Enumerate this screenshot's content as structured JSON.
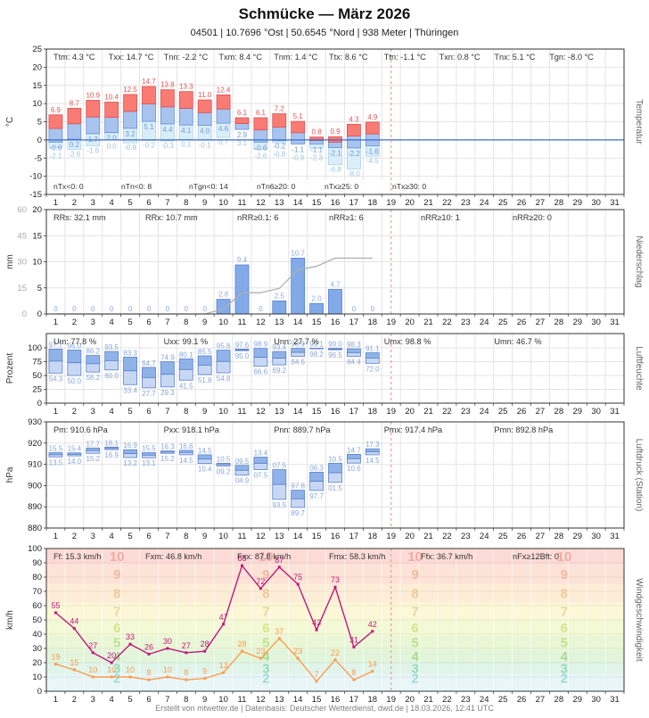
{
  "title": "Schmücke — März 2026",
  "subtitle": "04501 | 10.7696 °Ost | 50.6545 °Nord | 938 Meter | Thüringen",
  "footer": "Erstellt von mtwetter.de | Datenbasis: Deutscher Wetterdienst, dwd.de | 18.03.2026, 12:41 UTC",
  "days_in_month": 31,
  "current_day_marker": 18.5,
  "colors": {
    "tmax_bar": "#f87b74",
    "tmax_border": "#e05050",
    "tmin_bar": "#a8c4ee",
    "tmin_border": "#6090d8",
    "tground_bar": "#daeefa",
    "tground_border": "#a9d4ea",
    "tmax_label": "#e25555",
    "tmin_label": "#6f97d8",
    "tground_label": "#9cc2e0",
    "zero_line": "#3a6cc8",
    "precip_bar": "#82aae8",
    "precip_border": "#5580cc",
    "precip_label": "#8fa9e6",
    "cumulative_line": "#b0b0b0",
    "range_bar_top": "#8fb2e8",
    "range_bar_bottom": "#c8d8f4",
    "range_bar_border": "#5a82cc",
    "range_label": "#87a6dc",
    "gust_line": "#c2187c",
    "mean_line": "#fe9b4e",
    "now_line": "#e09090",
    "grid": "#e4e4e4",
    "border": "#333333",
    "stats_text": "#333333",
    "axis_text": "#222222",
    "axis2_text": "#aaaaaa",
    "panel_label": "#666666"
  },
  "chart_data": [
    {
      "id": "temperature",
      "type": "bar",
      "panel_label": "Temperatur",
      "ylabel": "°C",
      "ylim": [
        -15,
        25
      ],
      "yticks": [
        25,
        20,
        15,
        10,
        5,
        0,
        -5,
        -10,
        -15
      ],
      "stats": [
        "Ttm: 4.3 °C",
        "Txx: 14.7 °C",
        "Tnn: -2.2 °C",
        "Txm: 8.4 °C",
        "Tnm: 1.4 °C",
        "Ttx: 8.6 °C",
        "Ttn: -1.1 °C",
        "Txn: 0.8 °C",
        "Tnx: 5.1 °C",
        "Tgn: -8.0 °C"
      ],
      "stats_bottom": [
        "nTx<0: 0",
        "nTn<0: 8",
        "nTgn<0: 14",
        "nTn6≥20: 0",
        "nTx≥25: 0",
        "nTx≥30: 0"
      ],
      "tmax": [
        6.9,
        8.7,
        10.9,
        10.4,
        12.5,
        14.7,
        13.8,
        13.3,
        11.0,
        12.4,
        6.1,
        6.1,
        7.2,
        5.1,
        0.8,
        0.9,
        4.3,
        4.9
      ],
      "tmin": [
        -0.6,
        0.2,
        1.7,
        2.0,
        3.2,
        5.1,
        4.4,
        4.1,
        4.0,
        4.6,
        2.9,
        -0.6,
        -0.2,
        -1.1,
        -1.1,
        -2.1,
        -2.2,
        -1.6
      ],
      "tground": [
        -2.1,
        -2.6,
        -1.6,
        0.0,
        -0.8,
        -0.2,
        -0.3,
        0.1,
        -0.1,
        0.7,
        3.1,
        -2.6,
        -0.8,
        -0.9,
        -2.3,
        -6.8,
        -8.0,
        -4.5
      ]
    },
    {
      "id": "precipitation",
      "type": "bar",
      "panel_label": "Niederschlag",
      "ylabel": "mm",
      "ylim": [
        0,
        20
      ],
      "yticks": [
        20,
        15,
        10,
        5,
        0
      ],
      "y2lim": [
        0,
        60
      ],
      "y2ticks": [
        60,
        45,
        30,
        15,
        0
      ],
      "stats": [
        "RRs: 32.1 mm",
        "RRx: 10.7 mm",
        "nRR≥0.1: 6",
        "nRR≥1: 6",
        "nRR≥10: 1",
        "nRR≥20: 0"
      ],
      "values": [
        0,
        0,
        0,
        0,
        0,
        0,
        0,
        0,
        0,
        2.8,
        9.4,
        0,
        2.5,
        10.7,
        2.0,
        4.7,
        0,
        0
      ],
      "cumulative_line": true
    },
    {
      "id": "humidity",
      "type": "bar",
      "panel_label": "Luftfeuchte",
      "ylabel": "Prozent",
      "ylim": [
        0,
        100
      ],
      "yticks": [
        100,
        75,
        50,
        25,
        0
      ],
      "stats": [
        "Um: 77.8 %",
        "Uxx: 99.1 %",
        "Unn: 27.7 %",
        "Umx: 98.8 %",
        "Umn: 46.7 %"
      ],
      "umax": [
        97.7,
        96.0,
        86.2,
        93.5,
        83.3,
        64.7,
        74.9,
        80.1,
        85.5,
        95.8,
        97.6,
        98.9,
        93.4,
        98.9,
        99.1,
        99.0,
        98.3,
        91.1
      ],
      "umin": [
        54.3,
        50.0,
        56.2,
        60.0,
        33.4,
        27.7,
        29.3,
        41.5,
        51.8,
        54.8,
        95.0,
        66.6,
        69.2,
        84.6,
        98.2,
        96.5,
        84.4,
        72.0
      ]
    },
    {
      "id": "pressure",
      "type": "bar",
      "panel_label": "Luftdruck (Station)",
      "ylabel": "hPa",
      "ylim": [
        880,
        930
      ],
      "yticks": [
        930,
        920,
        910,
        900,
        890,
        880
      ],
      "stats": [
        "Pm: 910.6 hPa",
        "Pxx: 918.1 hPa",
        "Pnn: 889.7 hPa",
        "Pmx: 917.4 hPa",
        "Pmn: 892.8 hPa"
      ],
      "pmax": [
        915.5,
        915.4,
        917.7,
        918.1,
        916.9,
        915.5,
        916.3,
        916.6,
        914.5,
        910.5,
        909.5,
        913.4,
        907.5,
        897.8,
        906.3,
        910.5,
        914.7,
        917.3
      ],
      "pmin": [
        913.5,
        914.0,
        915.2,
        916.9,
        913.2,
        913.1,
        915.2,
        914.5,
        910.4,
        909.2,
        904.9,
        907.5,
        893.5,
        889.7,
        897.7,
        901.5,
        910.6,
        914.5
      ]
    },
    {
      "id": "wind",
      "type": "line",
      "panel_label": "Windgeschwindigkeit",
      "ylabel": "km/h",
      "ylim": [
        0,
        100
      ],
      "yticks": [
        100,
        90,
        80,
        70,
        60,
        50,
        40,
        30,
        20,
        10,
        0
      ],
      "stats": [
        "Ff: 15.3 km/h",
        "Fxm: 46.8 km/h",
        "Fxx: 87.8 km/h",
        "Fmx: 58.3 km/h",
        "Ffx: 36.7 km/h",
        "nFx≥12Bft: 0"
      ],
      "series": [
        {
          "name": "mean",
          "values": [
            19,
            15,
            10,
            10,
            10,
            8,
            10,
            8,
            9,
            13,
            28,
            23,
            37,
            23,
            7,
            22,
            8,
            14
          ]
        },
        {
          "name": "gust",
          "values": [
            55,
            44,
            27,
            20,
            33,
            26,
            30,
            27,
            28,
            47,
            88,
            72,
            87,
            75,
            43,
            73,
            31,
            42
          ]
        }
      ],
      "band_number_columns": [
        4,
        12,
        20,
        28
      ],
      "beaufort_bands": [
        {
          "bft": 2,
          "from": 0,
          "to": 12,
          "color": "#e8f6f8",
          "num_color": "#9fd9dc",
          "num_y": 9
        },
        {
          "bft": 3,
          "from": 12,
          "to": 20,
          "color": "#e0f4ea",
          "num_color": "#97d9b8",
          "num_y": 16
        },
        {
          "bft": 4,
          "from": 20,
          "to": 29,
          "color": "#e2f5db",
          "num_color": "#a5dc92",
          "num_y": 24.5
        },
        {
          "bft": 5,
          "from": 29,
          "to": 39,
          "color": "#eaf7d6",
          "num_color": "#bfe18c",
          "num_y": 34
        },
        {
          "bft": 6,
          "from": 39,
          "to": 50,
          "color": "#f4f9d5",
          "num_color": "#d6e38c",
          "num_y": 44.5
        },
        {
          "bft": 7,
          "from": 50,
          "to": 62,
          "color": "#fcf7d7",
          "num_color": "#e8d996",
          "num_y": 56
        },
        {
          "bft": 8,
          "from": 62,
          "to": 75,
          "color": "#fdedd7",
          "num_color": "#f0c898",
          "num_y": 68.5
        },
        {
          "bft": 9,
          "from": 75,
          "to": 89,
          "color": "#fde3d7",
          "num_color": "#f3b89e",
          "num_y": 82
        },
        {
          "bft": 10,
          "from": 89,
          "to": 100,
          "color": "#fcdbd7",
          "num_color": "#f2aaa2",
          "num_y": 94.5
        }
      ]
    }
  ]
}
